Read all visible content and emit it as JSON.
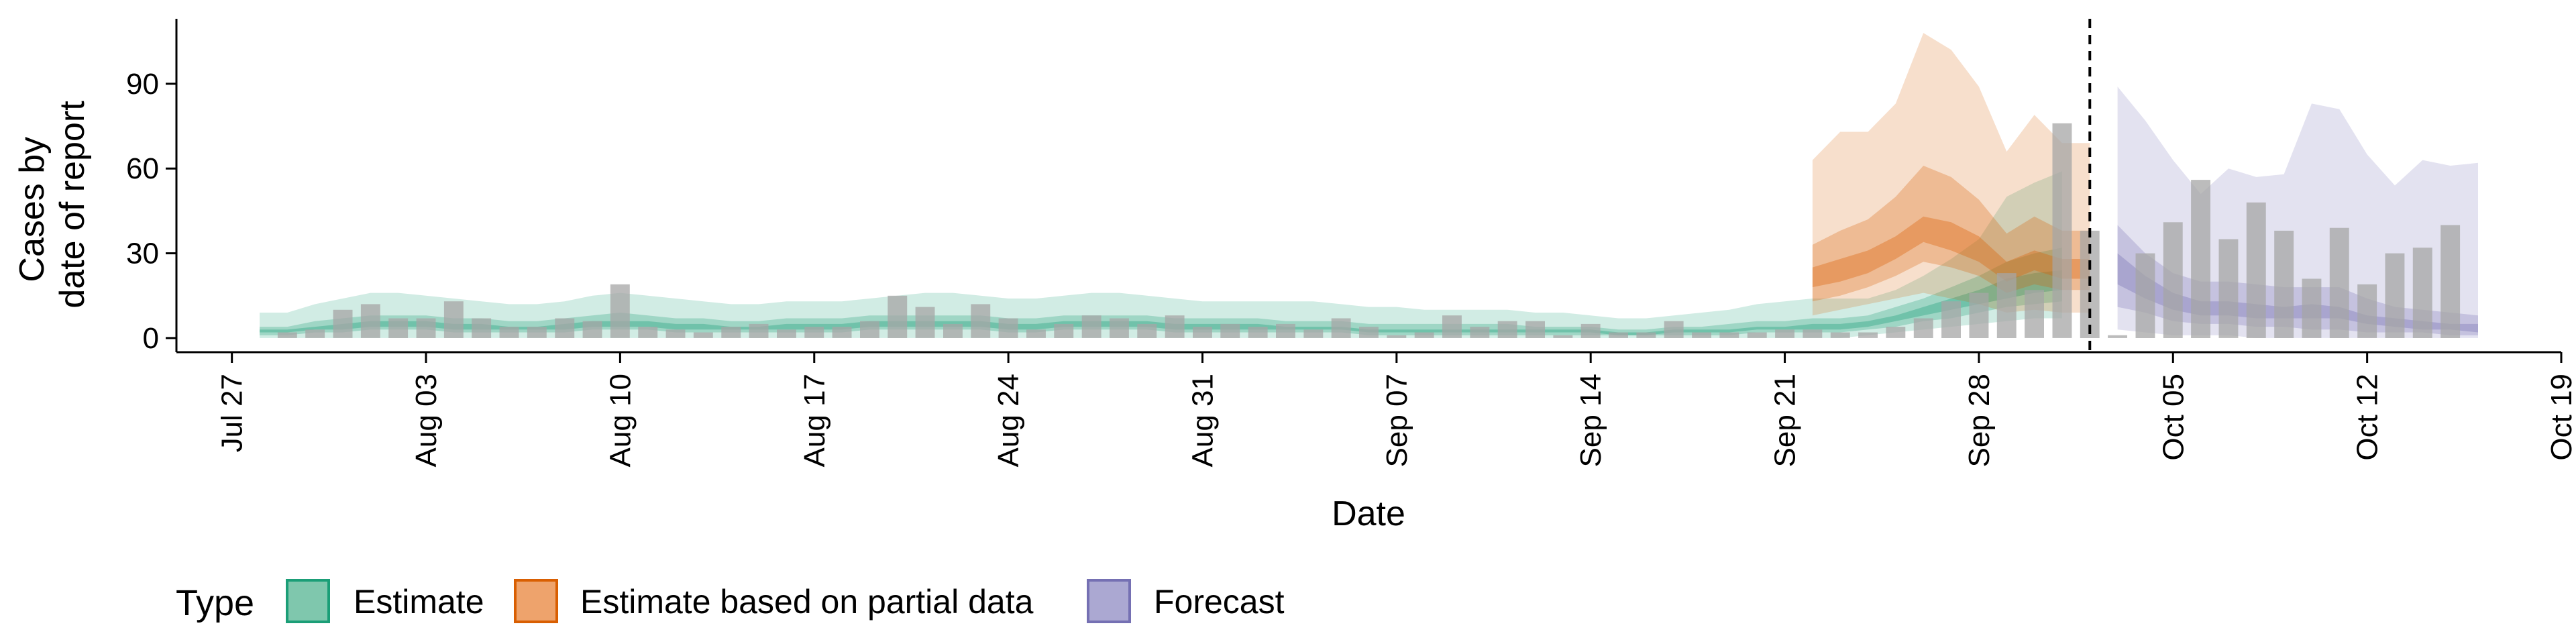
{
  "chart_data": {
    "type": "bar",
    "xlabel": "Date",
    "ylabel_lines": [
      "Cases by",
      "date of report"
    ],
    "ylim": [
      -5,
      113
    ],
    "yticks": [
      0,
      30,
      60,
      90
    ],
    "x_tick_labels": [
      "Jul 27",
      "Aug 03",
      "Aug 10",
      "Aug 17",
      "Aug 24",
      "Aug 31",
      "Sep 07",
      "Sep 14",
      "Sep 21",
      "Sep 28",
      "Oct 05",
      "Oct 12",
      "Oct 19"
    ],
    "x_tick_dates": [
      "2020-07-27",
      "2020-08-03",
      "2020-08-10",
      "2020-08-17",
      "2020-08-24",
      "2020-08-31",
      "2020-09-07",
      "2020-09-14",
      "2020-09-21",
      "2020-09-28",
      "2020-10-05",
      "2020-10-12",
      "2020-10-19"
    ],
    "xlim": [
      "2020-07-25",
      "2020-10-19"
    ],
    "grid": false,
    "legend_position": "bottom-left",
    "legend": {
      "title": "Type",
      "entries": [
        {
          "label": "Estimate",
          "fill": "#7fc7ad",
          "stroke": "#1b9e77"
        },
        {
          "label": "Estimate based on partial data",
          "fill": "#eea36c",
          "stroke": "#d95f02"
        },
        {
          "label": "Forecast",
          "fill": "#aba8d2",
          "stroke": "#7570b3"
        }
      ]
    },
    "vline_date": "2020-10-02",
    "colors": {
      "estimate": "#1b9e77",
      "partial": "#d95f02",
      "forecast": "#7570b3",
      "bars": "#a6a6a6"
    },
    "bars": {
      "start_date": "2020-07-29",
      "values": [
        2,
        3,
        10,
        12,
        7,
        7,
        13,
        7,
        4,
        4,
        7,
        6,
        19,
        4,
        3,
        2,
        4,
        5,
        3,
        4,
        4,
        6,
        15,
        11,
        5,
        12,
        7,
        3,
        5,
        8,
        7,
        5,
        8,
        4,
        5,
        4,
        5,
        3,
        7,
        4,
        1,
        2,
        8,
        4,
        6,
        6,
        1,
        5,
        2,
        2,
        6,
        2,
        2,
        2,
        3,
        3,
        2,
        2,
        4,
        7,
        13,
        16,
        23,
        17,
        76,
        38,
        1,
        30,
        41,
        56,
        35,
        48,
        38,
        21,
        39,
        19,
        30,
        32,
        40
      ]
    },
    "ribbons": [
      {
        "type": "Estimate",
        "start_date": "2020-07-28",
        "upper90": [
          9,
          9,
          12,
          14,
          16,
          16,
          15,
          14,
          13,
          12,
          12,
          13,
          15,
          16,
          15,
          14,
          13,
          12,
          12,
          13,
          13,
          13,
          14,
          15,
          16,
          16,
          15,
          14,
          14,
          15,
          16,
          16,
          15,
          14,
          13,
          13,
          13,
          13,
          13,
          12,
          11,
          11,
          10,
          10,
          10,
          10,
          9,
          9,
          8,
          7,
          7,
          8,
          9,
          10,
          12,
          13,
          14,
          14,
          14,
          17,
          22,
          28,
          35,
          50,
          55,
          59
        ],
        "lower90": [
          0,
          0,
          0,
          0,
          0,
          0,
          0,
          0,
          0,
          0,
          0,
          0,
          0,
          0,
          0,
          0,
          0,
          0,
          0,
          0,
          0,
          0,
          0,
          0,
          0,
          0,
          0,
          0,
          0,
          0,
          0,
          0,
          0,
          0,
          0,
          0,
          0,
          0,
          0,
          0,
          0,
          0,
          0,
          0,
          0,
          0,
          0,
          0,
          0,
          0,
          0,
          0,
          0,
          0,
          0,
          0,
          0,
          0,
          1,
          2,
          3,
          4,
          5,
          6,
          7,
          7
        ],
        "upper50": [
          4,
          4,
          6,
          7,
          8,
          8,
          8,
          7,
          7,
          6,
          6,
          7,
          8,
          9,
          8,
          7,
          7,
          6,
          6,
          7,
          7,
          7,
          8,
          8,
          8,
          8,
          8,
          7,
          7,
          8,
          8,
          8,
          8,
          7,
          7,
          7,
          7,
          6,
          6,
          6,
          5,
          5,
          5,
          5,
          5,
          5,
          4,
          4,
          4,
          3,
          3,
          4,
          4,
          5,
          6,
          6,
          7,
          7,
          8,
          11,
          14,
          18,
          22,
          27,
          30,
          32
        ],
        "lower50": [
          1,
          1,
          2,
          2,
          3,
          3,
          3,
          2,
          2,
          2,
          2,
          2,
          3,
          3,
          3,
          2,
          2,
          2,
          2,
          2,
          2,
          2,
          3,
          3,
          3,
          3,
          3,
          2,
          2,
          3,
          3,
          3,
          3,
          2,
          2,
          2,
          2,
          2,
          2,
          2,
          1,
          1,
          1,
          1,
          1,
          1,
          1,
          1,
          1,
          1,
          1,
          1,
          1,
          1,
          2,
          2,
          2,
          2,
          3,
          4,
          6,
          7,
          9,
          11,
          12,
          13
        ],
        "upper20": [
          3,
          3,
          4,
          5,
          6,
          6,
          6,
          5,
          5,
          4,
          4,
          5,
          6,
          6,
          6,
          5,
          5,
          4,
          4,
          5,
          5,
          5,
          6,
          6,
          6,
          6,
          6,
          5,
          5,
          6,
          6,
          6,
          6,
          5,
          5,
          5,
          5,
          4,
          4,
          4,
          3,
          3,
          3,
          3,
          3,
          3,
          3,
          3,
          3,
          2,
          2,
          3,
          3,
          3,
          4,
          4,
          5,
          5,
          6,
          8,
          11,
          14,
          17,
          21,
          23,
          24
        ],
        "lower20": [
          2,
          2,
          3,
          3,
          4,
          4,
          4,
          3,
          3,
          3,
          3,
          3,
          4,
          4,
          4,
          3,
          3,
          3,
          3,
          3,
          3,
          3,
          4,
          4,
          4,
          4,
          4,
          3,
          3,
          4,
          4,
          4,
          4,
          3,
          3,
          3,
          3,
          3,
          3,
          3,
          2,
          2,
          2,
          2,
          2,
          2,
          2,
          2,
          2,
          1,
          1,
          2,
          2,
          2,
          3,
          3,
          3,
          3,
          4,
          6,
          8,
          10,
          12,
          14,
          16,
          17
        ]
      },
      {
        "type": "Estimate based on partial data",
        "start_date": "2020-09-22",
        "upper90": [
          63,
          73,
          73,
          83,
          108,
          102,
          89,
          66,
          79,
          69,
          69
        ],
        "lower90": [
          8,
          10,
          12,
          14,
          16,
          14,
          12,
          9,
          10,
          9,
          9
        ],
        "upper50": [
          33,
          38,
          42,
          50,
          61,
          57,
          49,
          37,
          43,
          38,
          38
        ],
        "lower50": [
          13,
          15,
          18,
          22,
          27,
          25,
          22,
          16,
          19,
          17,
          17
        ],
        "upper20": [
          25,
          28,
          31,
          36,
          43,
          41,
          36,
          27,
          31,
          28,
          28
        ],
        "lower20": [
          18,
          20,
          23,
          28,
          34,
          31,
          27,
          20,
          24,
          21,
          21
        ]
      },
      {
        "type": "Forecast",
        "start_date": "2020-10-03",
        "upper90": [
          89,
          77,
          63,
          51,
          60,
          57,
          58,
          83,
          81,
          65,
          54,
          63,
          61,
          62
        ],
        "lower90": [
          3,
          2,
          1,
          1,
          1,
          0,
          0,
          0,
          0,
          0,
          0,
          0,
          0,
          0
        ],
        "upper50": [
          40,
          30,
          23,
          20,
          20,
          19,
          18,
          18,
          18,
          14,
          11,
          10,
          9,
          8
        ],
        "lower50": [
          11,
          9,
          6,
          5,
          5,
          4,
          4,
          3,
          3,
          2,
          2,
          2,
          1,
          1
        ],
        "upper20": [
          30,
          22,
          16,
          13,
          13,
          12,
          11,
          12,
          11,
          8,
          7,
          6,
          5,
          5
        ],
        "lower20": [
          19,
          14,
          10,
          8,
          8,
          7,
          7,
          7,
          7,
          5,
          4,
          3,
          3,
          2
        ]
      }
    ]
  }
}
